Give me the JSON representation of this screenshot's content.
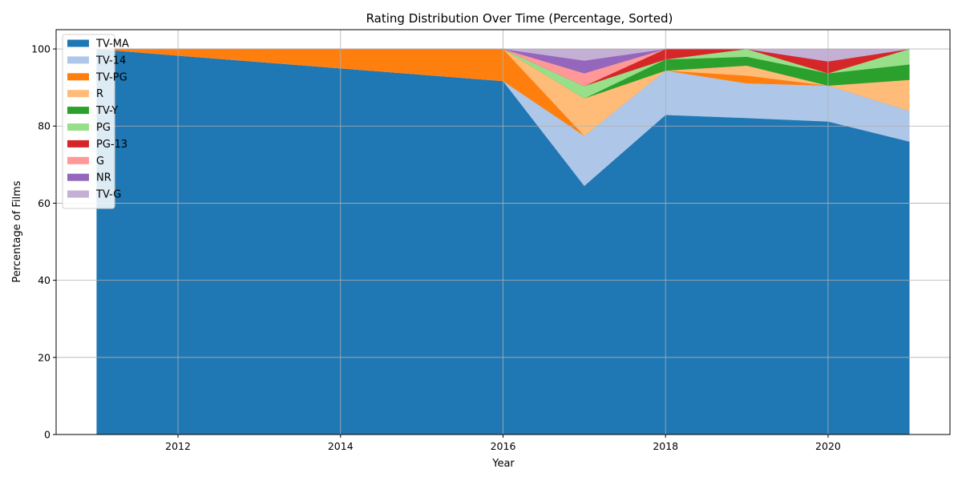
{
  "chart_data": {
    "type": "area",
    "stacked": true,
    "title": "Rating Distribution Over Time (Percentage, Sorted)",
    "xlabel": "Year",
    "ylabel": "Percentage of Films",
    "xlim": [
      2010.5,
      2021.5
    ],
    "ylim": [
      0,
      105
    ],
    "xticks": [
      2012,
      2014,
      2016,
      2018,
      2020
    ],
    "yticks": [
      0,
      20,
      40,
      60,
      80,
      100
    ],
    "grid": true,
    "legend_position": "top-left",
    "x": [
      2011,
      2012,
      2016,
      2017,
      2018,
      2019,
      2020,
      2021
    ],
    "series": [
      {
        "name": "TV-MA",
        "color": "#1f77b4",
        "values": [
          100,
          98.3,
          91.7,
          64.5,
          82.9,
          82.1,
          81.2,
          76.0
        ]
      },
      {
        "name": "TV-14",
        "color": "#aec7e8",
        "values": [
          0,
          0,
          0,
          13.0,
          11.5,
          9.0,
          9.3,
          8.0
        ]
      },
      {
        "name": "TV-PG",
        "color": "#ff7f0e",
        "values": [
          0,
          1.7,
          8.3,
          0,
          0,
          2.0,
          0,
          0
        ]
      },
      {
        "name": "R",
        "color": "#ffbb78",
        "values": [
          0,
          0,
          0,
          9.7,
          0,
          2.6,
          0,
          8.0
        ]
      },
      {
        "name": "TV-Y",
        "color": "#2ca02c",
        "values": [
          0,
          0,
          0,
          0,
          2.9,
          2.3,
          3.2,
          4.0
        ]
      },
      {
        "name": "PG",
        "color": "#98df8a",
        "values": [
          0,
          0,
          0,
          3.2,
          0,
          2.0,
          0,
          4.0
        ]
      },
      {
        "name": "PG-13",
        "color": "#d62728",
        "values": [
          0,
          0,
          0,
          0,
          2.7,
          0,
          3.1,
          0
        ]
      },
      {
        "name": "G",
        "color": "#ff9896",
        "values": [
          0,
          0,
          0,
          3.3,
          0,
          0,
          0,
          0
        ]
      },
      {
        "name": "NR",
        "color": "#9467bd",
        "values": [
          0,
          0,
          0,
          3.3,
          0,
          0,
          0,
          0
        ]
      },
      {
        "name": "TV-G",
        "color": "#c5b0d5",
        "values": [
          0,
          0,
          0,
          3.0,
          0,
          0,
          3.2,
          0
        ]
      }
    ]
  }
}
